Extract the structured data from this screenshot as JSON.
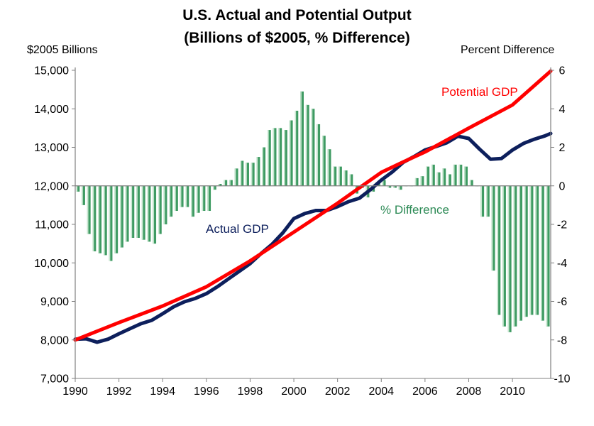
{
  "chart_data": {
    "type": "bar+line",
    "title": "U.S. Actual and Potential Output",
    "subtitle": "(Billions of $2005, % Difference)",
    "ylabel_left": "$2005 Billions",
    "ylabel_right": "Percent Difference",
    "ylim_left": [
      7000,
      15000
    ],
    "ylim_right": [
      -10,
      6
    ],
    "xlim": [
      1990,
      2011.75
    ],
    "x_ticks": [
      "1990",
      "1992",
      "1994",
      "1996",
      "1998",
      "2000",
      "2002",
      "2004",
      "2006",
      "2008",
      "2010"
    ],
    "y_ticks_left": [
      "7,000",
      "8,000",
      "9,000",
      "10,000",
      "11,000",
      "12,000",
      "13,000",
      "14,000",
      "15,000"
    ],
    "y_ticks_right": [
      "-10",
      "-8",
      "-6",
      "-4",
      "-2",
      "0",
      "2",
      "4",
      "6"
    ],
    "grid": false,
    "colors": {
      "actual": "#0d1f5c",
      "potential": "#ff0000",
      "difference": "#2e8b57"
    },
    "annotations": {
      "potential": "Potential GDP",
      "actual": "Actual GDP",
      "difference": "% Difference"
    },
    "series": [
      {
        "name": "Actual GDP",
        "axis": "left",
        "kind": "line",
        "x": [
          1990,
          1990.5,
          1991,
          1991.5,
          1992,
          1992.5,
          1993,
          1993.5,
          1994,
          1994.5,
          1995,
          1995.5,
          1996,
          1996.5,
          1997,
          1997.5,
          1998,
          1998.5,
          1999,
          1999.5,
          2000,
          2000.5,
          2001,
          2001.5,
          2002,
          2002.5,
          2003,
          2003.5,
          2004,
          2004.5,
          2005,
          2005.5,
          2006,
          2006.5,
          2007,
          2007.5,
          2008,
          2008.5,
          2009,
          2009.5,
          2010,
          2010.5,
          2011,
          2011.5,
          2011.75
        ],
        "values": [
          8020,
          8030,
          7940,
          8020,
          8160,
          8290,
          8420,
          8510,
          8680,
          8860,
          8990,
          9080,
          9200,
          9380,
          9580,
          9780,
          9980,
          10240,
          10480,
          10780,
          11150,
          11280,
          11360,
          11360,
          11460,
          11590,
          11680,
          11900,
          12150,
          12360,
          12610,
          12760,
          12930,
          13020,
          13120,
          13290,
          13230,
          12950,
          12690,
          12710,
          12930,
          13100,
          13210,
          13300,
          13360
        ]
      },
      {
        "name": "Potential GDP",
        "axis": "left",
        "kind": "line",
        "x": [
          1990,
          1992,
          1994,
          1996,
          1998,
          2000,
          2002,
          2004,
          2005,
          2006,
          2008,
          2010,
          2011.75
        ],
        "values": [
          8000,
          8450,
          8880,
          9380,
          10050,
          10800,
          11550,
          12350,
          12620,
          12880,
          13500,
          14100,
          14980
        ]
      },
      {
        "name": "% Difference",
        "axis": "right",
        "kind": "bar",
        "x": [
          1990.0,
          1990.25,
          1990.5,
          1990.75,
          1991.0,
          1991.25,
          1991.5,
          1991.75,
          1992.0,
          1992.25,
          1992.5,
          1992.75,
          1993.0,
          1993.25,
          1993.5,
          1993.75,
          1994.0,
          1994.25,
          1994.5,
          1994.75,
          1995.0,
          1995.25,
          1995.5,
          1995.75,
          1996.0,
          1996.25,
          1996.5,
          1996.75,
          1997.0,
          1997.25,
          1997.5,
          1997.75,
          1998.0,
          1998.25,
          1998.5,
          1998.75,
          1999.0,
          1999.25,
          1999.5,
          1999.75,
          2000.0,
          2000.25,
          2000.5,
          2000.75,
          2001.0,
          2001.25,
          2001.5,
          2001.75,
          2002.0,
          2002.25,
          2002.5,
          2002.75,
          2003.0,
          2003.25,
          2003.5,
          2003.75,
          2004.0,
          2004.25,
          2004.5,
          2004.75,
          2005.0,
          2005.25,
          2005.5,
          2005.75,
          2006.0,
          2006.25,
          2006.5,
          2006.75,
          2007.0,
          2007.25,
          2007.5,
          2007.75,
          2008.0,
          2008.25,
          2008.5,
          2008.75,
          2009.0,
          2009.25,
          2009.5,
          2009.75,
          2010.0,
          2010.25,
          2010.5,
          2010.75,
          2011.0,
          2011.25,
          2011.5
        ],
        "values": [
          -0.3,
          -1.0,
          -2.5,
          -3.4,
          -3.5,
          -3.6,
          -3.9,
          -3.5,
          -3.2,
          -2.9,
          -2.7,
          -2.7,
          -2.8,
          -2.9,
          -3.0,
          -2.5,
          -2.0,
          -1.6,
          -1.3,
          -1.1,
          -1.1,
          -1.6,
          -1.4,
          -1.3,
          -1.3,
          -0.2,
          0.1,
          0.3,
          0.3,
          0.9,
          1.3,
          1.2,
          1.2,
          1.5,
          2.0,
          2.9,
          3.0,
          3.0,
          2.9,
          3.4,
          3.9,
          4.9,
          4.2,
          4.0,
          3.2,
          2.6,
          1.9,
          1.0,
          1.0,
          0.8,
          0.6,
          -0.4,
          -0.1,
          -0.6,
          -0.3,
          0.2,
          0.3,
          -0.1,
          -0.1,
          -0.2,
          0.0,
          0.0,
          0.4,
          0.5,
          1.0,
          1.1,
          0.7,
          0.9,
          0.6,
          1.1,
          1.1,
          1.0,
          0.3,
          0.0,
          -1.6,
          -1.6,
          -4.4,
          -6.7,
          -7.3,
          -7.6,
          -7.3,
          -7.0,
          -6.8,
          -6.7,
          -6.7,
          -7.0,
          -7.3
        ]
      }
    ]
  }
}
